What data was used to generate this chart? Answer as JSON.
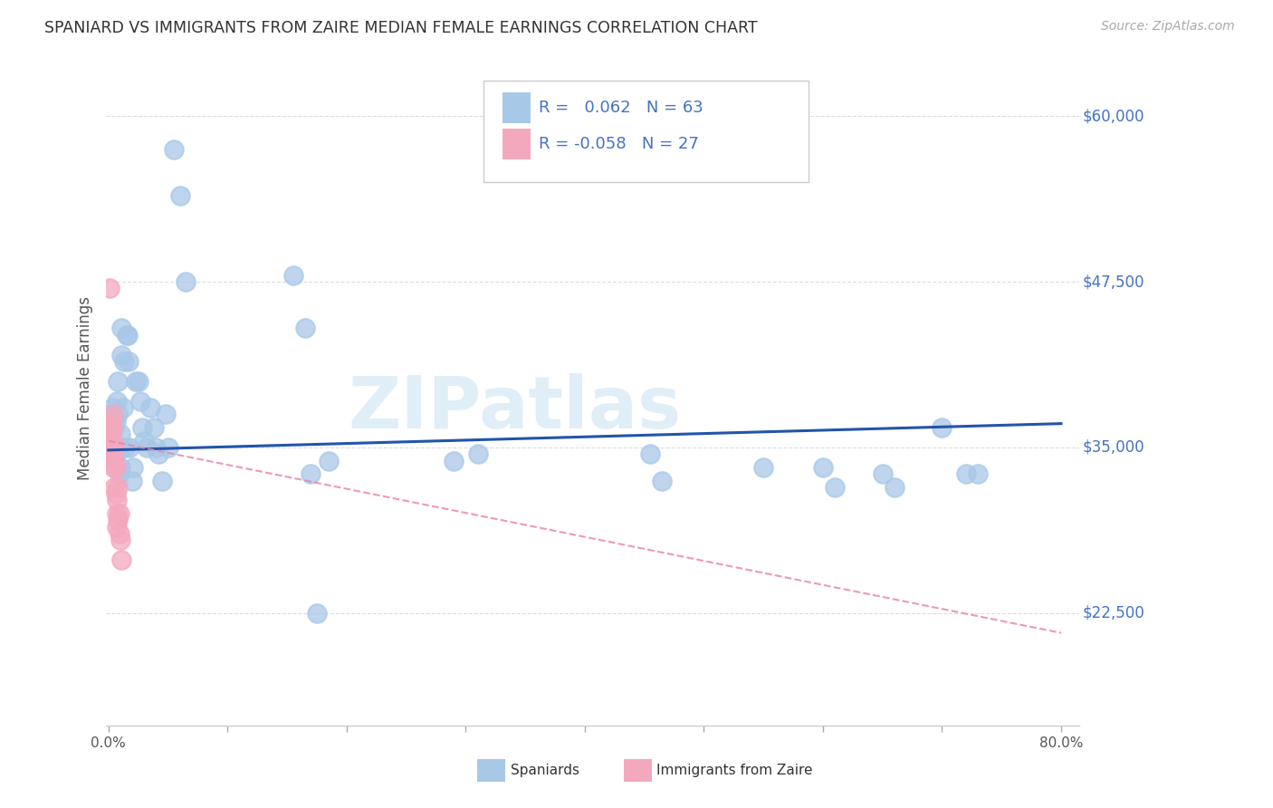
{
  "title": "SPANIARD VS IMMIGRANTS FROM ZAIRE MEDIAN FEMALE EARNINGS CORRELATION CHART",
  "source": "Source: ZipAtlas.com",
  "ylabel": "Median Female Earnings",
  "ytick_labels": [
    "$22,500",
    "$35,000",
    "$47,500",
    "$60,000"
  ],
  "ytick_values": [
    22500,
    35000,
    47500,
    60000
  ],
  "ymin": 14000,
  "ymax": 65000,
  "xmin": -0.002,
  "xmax": 0.815,
  "watermark": "ZIPatlas",
  "legend_r1": "R =   0.062",
  "legend_n1": "N = 63",
  "legend_r2": "R = -0.058",
  "legend_n2": "N = 27",
  "blue_color": "#A8C8E8",
  "pink_color": "#F4A8BE",
  "line_blue": "#2255AA",
  "line_pink": "#E888A8",
  "title_color": "#333333",
  "right_label_color": "#4472C4",
  "grid_color": "#DDDDDD",
  "spaniards_x": [
    0.001,
    0.002,
    0.002,
    0.003,
    0.003,
    0.004,
    0.004,
    0.005,
    0.005,
    0.006,
    0.006,
    0.007,
    0.007,
    0.008,
    0.008,
    0.009,
    0.009,
    0.01,
    0.01,
    0.011,
    0.011,
    0.012,
    0.013,
    0.014,
    0.015,
    0.016,
    0.017,
    0.018,
    0.02,
    0.021,
    0.023,
    0.025,
    0.027,
    0.028,
    0.03,
    0.032,
    0.035,
    0.038,
    0.04,
    0.042,
    0.045,
    0.048,
    0.05,
    0.055,
    0.06,
    0.065,
    0.155,
    0.165,
    0.17,
    0.175,
    0.185,
    0.29,
    0.31,
    0.455,
    0.465,
    0.55,
    0.6,
    0.61,
    0.65,
    0.66,
    0.7,
    0.72,
    0.73
  ],
  "spaniards_y": [
    36000,
    37500,
    35500,
    38000,
    36000,
    37000,
    35000,
    36500,
    35000,
    37000,
    34500,
    38500,
    35000,
    40000,
    37500,
    35000,
    33000,
    36000,
    33500,
    42000,
    44000,
    38000,
    41500,
    35000,
    43500,
    43500,
    41500,
    35000,
    32500,
    33500,
    40000,
    40000,
    38500,
    36500,
    35500,
    35000,
    38000,
    36500,
    35000,
    34500,
    32500,
    37500,
    35000,
    57500,
    54000,
    47500,
    48000,
    44000,
    33000,
    22500,
    34000,
    34000,
    34500,
    34500,
    32500,
    33500,
    33500,
    32000,
    33000,
    32000,
    36500,
    33000,
    33000
  ],
  "zaire_x": [
    0.001,
    0.001,
    0.001,
    0.002,
    0.002,
    0.002,
    0.003,
    0.003,
    0.003,
    0.003,
    0.004,
    0.004,
    0.004,
    0.005,
    0.005,
    0.005,
    0.006,
    0.006,
    0.007,
    0.007,
    0.007,
    0.008,
    0.008,
    0.009,
    0.009,
    0.01,
    0.011
  ],
  "zaire_y": [
    35500,
    36500,
    47000,
    35000,
    36000,
    37000,
    34000,
    35500,
    36500,
    34500,
    35000,
    37500,
    33500,
    35000,
    34000,
    32000,
    31500,
    33500,
    31000,
    30000,
    29000,
    32000,
    29500,
    28500,
    30000,
    28000,
    26500
  ],
  "xtick_positions": [
    0.0,
    0.1,
    0.2,
    0.3,
    0.4,
    0.5,
    0.6,
    0.7,
    0.8
  ]
}
